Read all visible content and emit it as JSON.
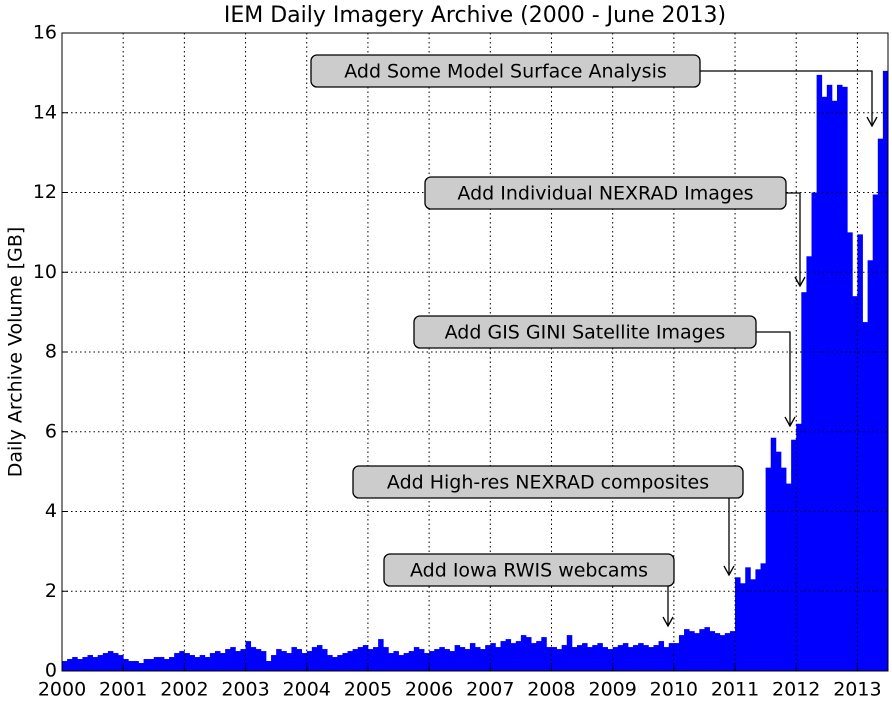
{
  "chart_data": {
    "type": "histogram",
    "title": "IEM Daily Imagery Archive (2000 - June 2013)",
    "y_label": "Daily Archive Volume [GB]",
    "color": "#0000ff",
    "grid": true,
    "xlim": [
      2000,
      2013.5
    ],
    "ylim": [
      0,
      16
    ],
    "xticks": [
      2000,
      2001,
      2002,
      2003,
      2004,
      2005,
      2006,
      2007,
      2008,
      2009,
      2010,
      2011,
      2012,
      2013
    ],
    "yticks": [
      0,
      2,
      4,
      6,
      8,
      10,
      12,
      14,
      16
    ],
    "bins": [
      2000,
      2000.0833,
      2000.1667,
      2000.25,
      2000.3333,
      2000.4167,
      2000.5,
      2000.5833,
      2000.6667,
      2000.75,
      2000.8333,
      2000.9167,
      2001,
      2001.0833,
      2001.1667,
      2001.25,
      2001.3333,
      2001.4167,
      2001.5,
      2001.5833,
      2001.6667,
      2001.75,
      2001.8333,
      2001.9167,
      2002,
      2002.0833,
      2002.1667,
      2002.25,
      2002.3333,
      2002.4167,
      2002.5,
      2002.5833,
      2002.6667,
      2002.75,
      2002.8333,
      2002.9167,
      2003,
      2003.0833,
      2003.1667,
      2003.25,
      2003.3333,
      2003.4167,
      2003.5,
      2003.5833,
      2003.6667,
      2003.75,
      2003.8333,
      2003.9167,
      2004,
      2004.0833,
      2004.1667,
      2004.25,
      2004.3333,
      2004.4167,
      2004.5,
      2004.5833,
      2004.6667,
      2004.75,
      2004.8333,
      2004.9167,
      2005,
      2005.0833,
      2005.1667,
      2005.25,
      2005.3333,
      2005.4167,
      2005.5,
      2005.5833,
      2005.6667,
      2005.75,
      2005.8333,
      2005.9167,
      2006,
      2006.0833,
      2006.1667,
      2006.25,
      2006.3333,
      2006.4167,
      2006.5,
      2006.5833,
      2006.6667,
      2006.75,
      2006.8333,
      2006.9167,
      2007,
      2007.0833,
      2007.1667,
      2007.25,
      2007.3333,
      2007.4167,
      2007.5,
      2007.5833,
      2007.6667,
      2007.75,
      2007.8333,
      2007.9167,
      2008,
      2008.0833,
      2008.1667,
      2008.25,
      2008.3333,
      2008.4167,
      2008.5,
      2008.5833,
      2008.6667,
      2008.75,
      2008.8333,
      2008.9167,
      2009,
      2009.0833,
      2009.1667,
      2009.25,
      2009.3333,
      2009.4167,
      2009.5,
      2009.5833,
      2009.6667,
      2009.75,
      2009.8333,
      2009.9167,
      2010,
      2010.0833,
      2010.1667,
      2010.25,
      2010.3333,
      2010.4167,
      2010.5,
      2010.5833,
      2010.6667,
      2010.75,
      2010.8333,
      2010.9167,
      2011,
      2011.0833,
      2011.1667,
      2011.25,
      2011.3333,
      2011.4167,
      2011.5,
      2011.5833,
      2011.6667,
      2011.75,
      2011.8333,
      2011.9167,
      2012,
      2012.0833,
      2012.1667,
      2012.25,
      2012.3333,
      2012.4167,
      2012.5,
      2012.5833,
      2012.6667,
      2012.75,
      2012.8333,
      2012.9167,
      2013,
      2013.0833,
      2013.1667,
      2013.25,
      2013.3333,
      2013.4167,
      2013.5
    ],
    "values": [
      0.25,
      0.3,
      0.35,
      0.3,
      0.35,
      0.4,
      0.35,
      0.4,
      0.45,
      0.5,
      0.45,
      0.4,
      0.3,
      0.25,
      0.25,
      0.2,
      0.3,
      0.3,
      0.35,
      0.35,
      0.3,
      0.35,
      0.45,
      0.5,
      0.45,
      0.4,
      0.35,
      0.4,
      0.35,
      0.45,
      0.5,
      0.45,
      0.55,
      0.6,
      0.5,
      0.55,
      0.75,
      0.6,
      0.55,
      0.5,
      0.25,
      0.4,
      0.55,
      0.5,
      0.45,
      0.6,
      0.55,
      0.45,
      0.5,
      0.6,
      0.65,
      0.55,
      0.4,
      0.35,
      0.4,
      0.45,
      0.5,
      0.55,
      0.6,
      0.65,
      0.55,
      0.6,
      0.8,
      0.6,
      0.45,
      0.5,
      0.4,
      0.45,
      0.5,
      0.6,
      0.55,
      0.45,
      0.5,
      0.55,
      0.6,
      0.55,
      0.5,
      0.65,
      0.6,
      0.55,
      0.7,
      0.6,
      0.55,
      0.65,
      0.7,
      0.6,
      0.75,
      0.8,
      0.7,
      0.75,
      0.9,
      0.85,
      0.7,
      0.75,
      0.85,
      0.6,
      0.6,
      0.55,
      0.65,
      0.9,
      0.6,
      0.65,
      0.7,
      0.6,
      0.65,
      0.7,
      0.6,
      0.55,
      0.6,
      0.65,
      0.7,
      0.6,
      0.65,
      0.7,
      0.65,
      0.6,
      0.65,
      0.75,
      0.6,
      0.7,
      0.7,
      0.9,
      1.05,
      1.0,
      0.95,
      1.05,
      1.1,
      1.0,
      0.95,
      0.9,
      0.95,
      1.0,
      2.35,
      2.2,
      2.6,
      2.3,
      2.55,
      2.7,
      5.1,
      5.85,
      5.5,
      5.1,
      4.7,
      5.8,
      6.2,
      9.5,
      10.4,
      12.0,
      14.95,
      14.4,
      14.7,
      14.3,
      14.7,
      14.65,
      11.0,
      9.4,
      10.95,
      8.75,
      10.3,
      11.95,
      13.35,
      15.05
    ],
    "annotations": [
      "Add Some Model Surface Analysis",
      "Add Individual NEXRAD Images",
      "Add GIS GINI Satellite Images",
      "Add High-res NEXRAD composites",
      "Add Iowa RWIS webcams"
    ]
  }
}
